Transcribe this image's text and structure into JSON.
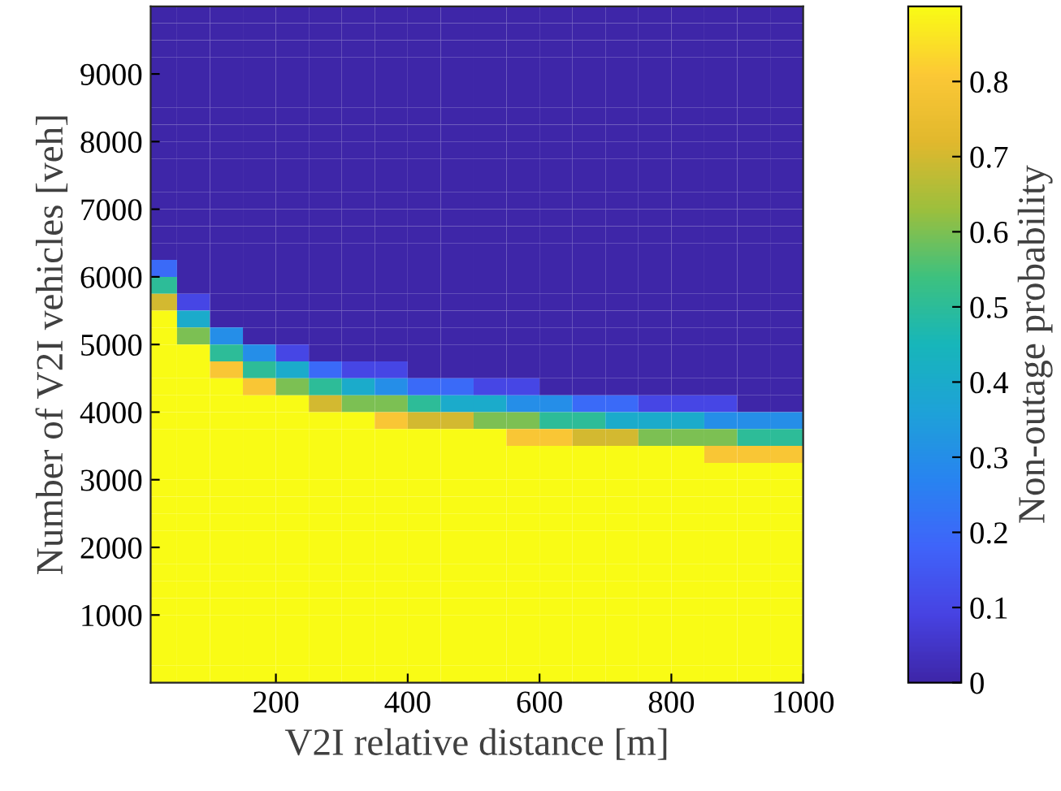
{
  "chart_data": {
    "type": "heatmap",
    "xlabel": "V2I relative distance [m]",
    "ylabel": "Number of V2I vehicles [veh]",
    "clabel": "Non-outage probability",
    "x": [
      25,
      75,
      125,
      175,
      225,
      275,
      325,
      375,
      425,
      475,
      525,
      575,
      625,
      675,
      725,
      775,
      825,
      875,
      925,
      975
    ],
    "y": [
      9875,
      9625,
      9375,
      9125,
      8875,
      8625,
      8375,
      8125,
      7875,
      7625,
      7375,
      7125,
      6875,
      6625,
      6375,
      6125,
      5875,
      5625,
      5375,
      5125,
      4875,
      4625,
      4375,
      4125,
      3875,
      3625,
      3375,
      3125,
      2875,
      2625,
      2375,
      2125,
      1875,
      1625,
      1375,
      1125,
      875,
      625,
      375,
      125
    ],
    "cells": [
      [
        0,
        0,
        0,
        0,
        0,
        0,
        0,
        0,
        0,
        0,
        0,
        0,
        0,
        0,
        0,
        0,
        0,
        0,
        0,
        0
      ],
      [
        0,
        0,
        0,
        0,
        0,
        0,
        0,
        0,
        0,
        0,
        0,
        0,
        0,
        0,
        0,
        0,
        0,
        0,
        0,
        0
      ],
      [
        0,
        0,
        0,
        0,
        0,
        0,
        0,
        0,
        0,
        0,
        0,
        0,
        0,
        0,
        0,
        0,
        0,
        0,
        0,
        0
      ],
      [
        0,
        0,
        0,
        0,
        0,
        0,
        0,
        0,
        0,
        0,
        0,
        0,
        0,
        0,
        0,
        0,
        0,
        0,
        0,
        0
      ],
      [
        0,
        0,
        0,
        0,
        0,
        0,
        0,
        0,
        0,
        0,
        0,
        0,
        0,
        0,
        0,
        0,
        0,
        0,
        0,
        0
      ],
      [
        0,
        0,
        0,
        0,
        0,
        0,
        0,
        0,
        0,
        0,
        0,
        0,
        0,
        0,
        0,
        0,
        0,
        0,
        0,
        0
      ],
      [
        0,
        0,
        0,
        0,
        0,
        0,
        0,
        0,
        0,
        0,
        0,
        0,
        0,
        0,
        0,
        0,
        0,
        0,
        0,
        0
      ],
      [
        0,
        0,
        0,
        0,
        0,
        0,
        0,
        0,
        0,
        0,
        0,
        0,
        0,
        0,
        0,
        0,
        0,
        0,
        0,
        0
      ],
      [
        0,
        0,
        0,
        0,
        0,
        0,
        0,
        0,
        0,
        0,
        0,
        0,
        0,
        0,
        0,
        0,
        0,
        0,
        0,
        0
      ],
      [
        0,
        0,
        0,
        0,
        0,
        0,
        0,
        0,
        0,
        0,
        0,
        0,
        0,
        0,
        0,
        0,
        0,
        0,
        0,
        0
      ],
      [
        0,
        0,
        0,
        0,
        0,
        0,
        0,
        0,
        0,
        0,
        0,
        0,
        0,
        0,
        0,
        0,
        0,
        0,
        0,
        0
      ],
      [
        0,
        0,
        0,
        0,
        0,
        0,
        0,
        0,
        0,
        0,
        0,
        0,
        0,
        0,
        0,
        0,
        0,
        0,
        0,
        0
      ],
      [
        0,
        0,
        0,
        0,
        0,
        0,
        0,
        0,
        0,
        0,
        0,
        0,
        0,
        0,
        0,
        0,
        0,
        0,
        0,
        0
      ],
      [
        0,
        0,
        0,
        0,
        0,
        0,
        0,
        0,
        0,
        0,
        0,
        0,
        0,
        0,
        0,
        0,
        0,
        0,
        0,
        0
      ],
      [
        0,
        0,
        0,
        0,
        0,
        0,
        0,
        0,
        0,
        0,
        0,
        0,
        0,
        0,
        0,
        0,
        0,
        0,
        0,
        0
      ],
      [
        0.2,
        0,
        0,
        0,
        0,
        0,
        0,
        0,
        0,
        0,
        0,
        0,
        0,
        0,
        0,
        0,
        0,
        0,
        0,
        0
      ],
      [
        0.5,
        0,
        0,
        0,
        0,
        0,
        0,
        0,
        0,
        0,
        0,
        0,
        0,
        0,
        0,
        0,
        0,
        0,
        0,
        0
      ],
      [
        0.7,
        0.1,
        0,
        0,
        0,
        0,
        0,
        0,
        0,
        0,
        0,
        0,
        0,
        0,
        0,
        0,
        0,
        0,
        0,
        0
      ],
      [
        0.9,
        0.4,
        0,
        0,
        0,
        0,
        0,
        0,
        0,
        0,
        0,
        0,
        0,
        0,
        0,
        0,
        0,
        0,
        0,
        0
      ],
      [
        0.9,
        0.6,
        0.3,
        0,
        0,
        0,
        0,
        0,
        0,
        0,
        0,
        0,
        0,
        0,
        0,
        0,
        0,
        0,
        0,
        0
      ],
      [
        0.9,
        0.9,
        0.5,
        0.3,
        0.1,
        0,
        0,
        0,
        0,
        0,
        0,
        0,
        0,
        0,
        0,
        0,
        0,
        0,
        0,
        0
      ],
      [
        0.9,
        0.9,
        0.8,
        0.5,
        0.4,
        0.2,
        0.1,
        0.1,
        0,
        0,
        0,
        0,
        0,
        0,
        0,
        0,
        0,
        0,
        0,
        0
      ],
      [
        0.9,
        0.9,
        0.9,
        0.8,
        0.6,
        0.5,
        0.4,
        0.3,
        0.2,
        0.2,
        0.1,
        0.1,
        0,
        0,
        0,
        0,
        0,
        0,
        0,
        0
      ],
      [
        0.9,
        0.9,
        0.9,
        0.9,
        0.9,
        0.7,
        0.6,
        0.6,
        0.5,
        0.4,
        0.4,
        0.3,
        0.3,
        0.2,
        0.2,
        0.1,
        0.1,
        0.1,
        0,
        0
      ],
      [
        0.9,
        0.9,
        0.9,
        0.9,
        0.9,
        0.9,
        0.9,
        0.8,
        0.7,
        0.7,
        0.6,
        0.6,
        0.5,
        0.5,
        0.4,
        0.4,
        0.4,
        0.3,
        0.3,
        0.3
      ],
      [
        0.9,
        0.9,
        0.9,
        0.9,
        0.9,
        0.9,
        0.9,
        0.9,
        0.9,
        0.9,
        0.9,
        0.8,
        0.8,
        0.7,
        0.7,
        0.6,
        0.6,
        0.6,
        0.5,
        0.5
      ],
      [
        0.9,
        0.9,
        0.9,
        0.9,
        0.9,
        0.9,
        0.9,
        0.9,
        0.9,
        0.9,
        0.9,
        0.9,
        0.9,
        0.9,
        0.9,
        0.9,
        0.9,
        0.8,
        0.8,
        0.8
      ],
      [
        0.9,
        0.9,
        0.9,
        0.9,
        0.9,
        0.9,
        0.9,
        0.9,
        0.9,
        0.9,
        0.9,
        0.9,
        0.9,
        0.9,
        0.9,
        0.9,
        0.9,
        0.9,
        0.9,
        0.9
      ],
      [
        0.9,
        0.9,
        0.9,
        0.9,
        0.9,
        0.9,
        0.9,
        0.9,
        0.9,
        0.9,
        0.9,
        0.9,
        0.9,
        0.9,
        0.9,
        0.9,
        0.9,
        0.9,
        0.9,
        0.9
      ],
      [
        0.9,
        0.9,
        0.9,
        0.9,
        0.9,
        0.9,
        0.9,
        0.9,
        0.9,
        0.9,
        0.9,
        0.9,
        0.9,
        0.9,
        0.9,
        0.9,
        0.9,
        0.9,
        0.9,
        0.9
      ],
      [
        0.9,
        0.9,
        0.9,
        0.9,
        0.9,
        0.9,
        0.9,
        0.9,
        0.9,
        0.9,
        0.9,
        0.9,
        0.9,
        0.9,
        0.9,
        0.9,
        0.9,
        0.9,
        0.9,
        0.9
      ],
      [
        0.9,
        0.9,
        0.9,
        0.9,
        0.9,
        0.9,
        0.9,
        0.9,
        0.9,
        0.9,
        0.9,
        0.9,
        0.9,
        0.9,
        0.9,
        0.9,
        0.9,
        0.9,
        0.9,
        0.9
      ],
      [
        0.9,
        0.9,
        0.9,
        0.9,
        0.9,
        0.9,
        0.9,
        0.9,
        0.9,
        0.9,
        0.9,
        0.9,
        0.9,
        0.9,
        0.9,
        0.9,
        0.9,
        0.9,
        0.9,
        0.9
      ],
      [
        0.9,
        0.9,
        0.9,
        0.9,
        0.9,
        0.9,
        0.9,
        0.9,
        0.9,
        0.9,
        0.9,
        0.9,
        0.9,
        0.9,
        0.9,
        0.9,
        0.9,
        0.9,
        0.9,
        0.9
      ],
      [
        0.9,
        0.9,
        0.9,
        0.9,
        0.9,
        0.9,
        0.9,
        0.9,
        0.9,
        0.9,
        0.9,
        0.9,
        0.9,
        0.9,
        0.9,
        0.9,
        0.9,
        0.9,
        0.9,
        0.9
      ],
      [
        0.9,
        0.9,
        0.9,
        0.9,
        0.9,
        0.9,
        0.9,
        0.9,
        0.9,
        0.9,
        0.9,
        0.9,
        0.9,
        0.9,
        0.9,
        0.9,
        0.9,
        0.9,
        0.9,
        0.9
      ],
      [
        0.9,
        0.9,
        0.9,
        0.9,
        0.9,
        0.9,
        0.9,
        0.9,
        0.9,
        0.9,
        0.9,
        0.9,
        0.9,
        0.9,
        0.9,
        0.9,
        0.9,
        0.9,
        0.9,
        0.9
      ],
      [
        0.9,
        0.9,
        0.9,
        0.9,
        0.9,
        0.9,
        0.9,
        0.9,
        0.9,
        0.9,
        0.9,
        0.9,
        0.9,
        0.9,
        0.9,
        0.9,
        0.9,
        0.9,
        0.9,
        0.9
      ],
      [
        0.9,
        0.9,
        0.9,
        0.9,
        0.9,
        0.9,
        0.9,
        0.9,
        0.9,
        0.9,
        0.9,
        0.9,
        0.9,
        0.9,
        0.9,
        0.9,
        0.9,
        0.9,
        0.9,
        0.9
      ],
      [
        0.9,
        0.9,
        0.9,
        0.9,
        0.9,
        0.9,
        0.9,
        0.9,
        0.9,
        0.9,
        0.9,
        0.9,
        0.9,
        0.9,
        0.9,
        0.9,
        0.9,
        0.9,
        0.9,
        0.9
      ]
    ],
    "xlim": [
      10,
      1000
    ],
    "ylim": [
      0,
      10000
    ],
    "xticks": [
      200,
      400,
      600,
      800,
      1000
    ],
    "yticks": [
      1000,
      2000,
      3000,
      4000,
      5000,
      6000,
      7000,
      8000,
      9000
    ],
    "clim": [
      0,
      0.9
    ],
    "cticks": [
      0,
      0.1,
      0.2,
      0.3,
      0.4,
      0.5,
      0.6,
      0.7,
      0.8
    ]
  }
}
